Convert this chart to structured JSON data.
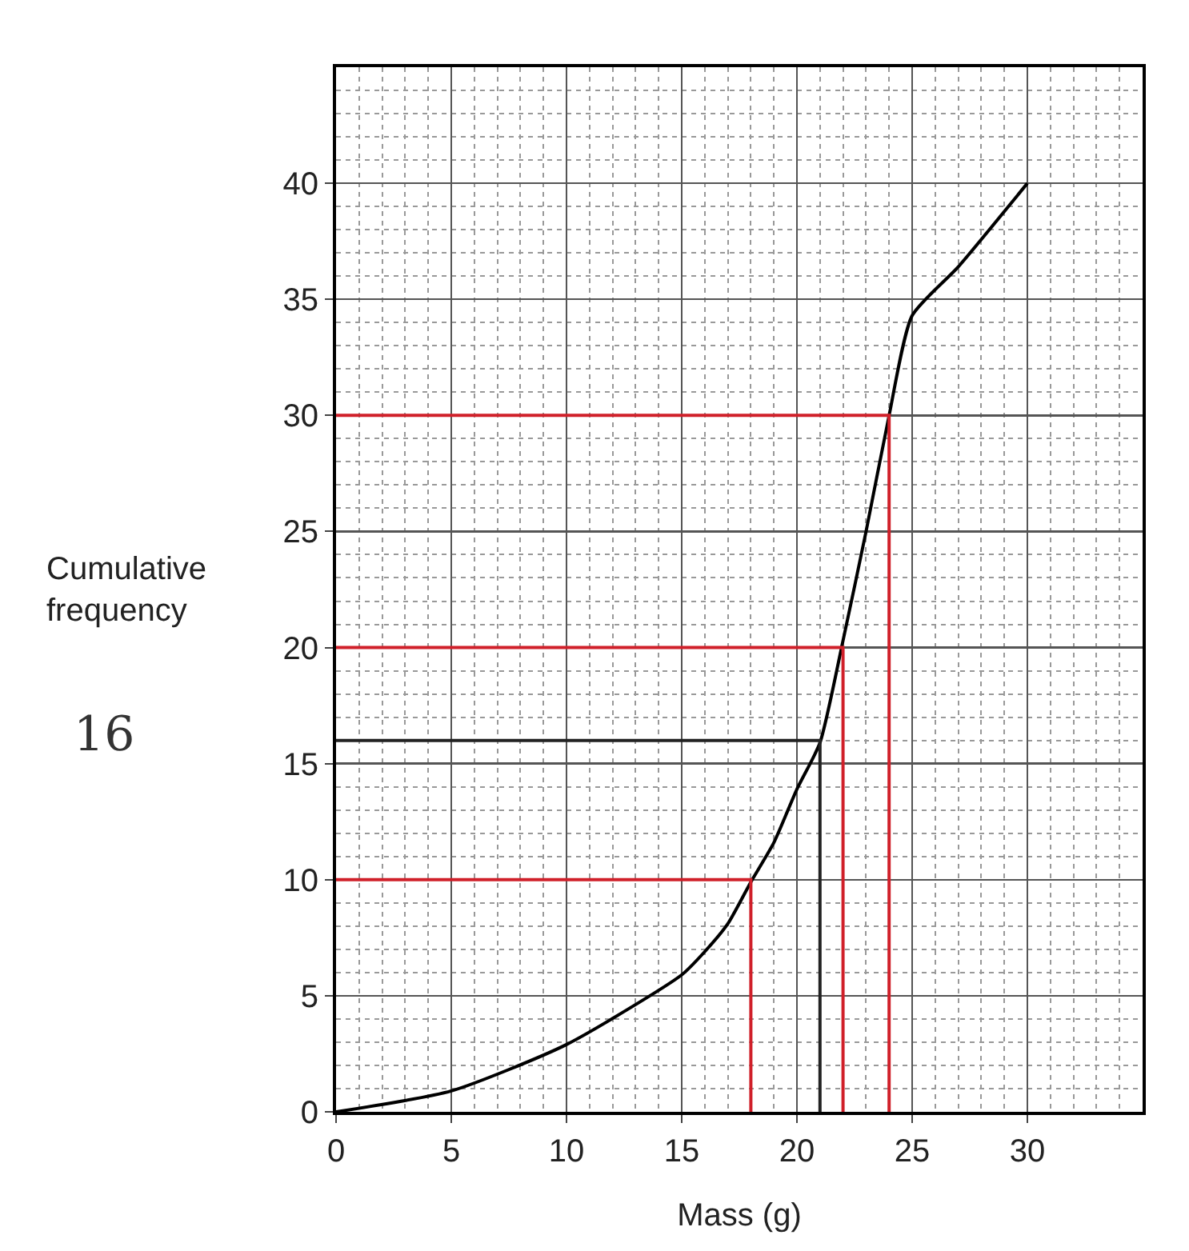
{
  "chart_data": {
    "type": "line",
    "xlabel": "Mass (g)",
    "ylabel": "Cumulative frequency",
    "x": [
      0,
      5,
      10,
      15,
      16,
      17,
      18,
      19,
      20,
      21,
      22,
      23,
      24,
      25,
      27,
      30
    ],
    "series": [
      {
        "color": "#000000",
        "values": [
          0,
          0.9,
          2.9,
          5.9,
          6.9,
          8.1,
          9.9,
          11.6,
          13.9,
          15.9,
          20.3,
          25,
          30,
          34.3,
          36.4,
          40
        ]
      },
      {
        "color": "#d0202a",
        "x": [
          0,
          18,
          18
        ],
        "values": [
          10,
          10,
          0
        ]
      },
      {
        "color": "#d0202a",
        "x": [
          0,
          22,
          22
        ],
        "values": [
          20,
          20,
          0
        ]
      },
      {
        "color": "#d0202a",
        "x": [
          0,
          24,
          24
        ],
        "values": [
          30,
          30,
          0
        ]
      },
      {
        "color": "#222222",
        "x": [
          0,
          21,
          21
        ],
        "values": [
          16,
          16,
          0
        ]
      }
    ],
    "annotations": [
      "16"
    ],
    "xlim": [
      0,
      35
    ],
    "ylim": [
      0,
      45
    ],
    "xticks": [
      0,
      5,
      10,
      15,
      20,
      25,
      30
    ],
    "yticks": [
      0,
      5,
      10,
      15,
      20,
      25,
      30,
      35,
      40
    ],
    "grid": true
  }
}
